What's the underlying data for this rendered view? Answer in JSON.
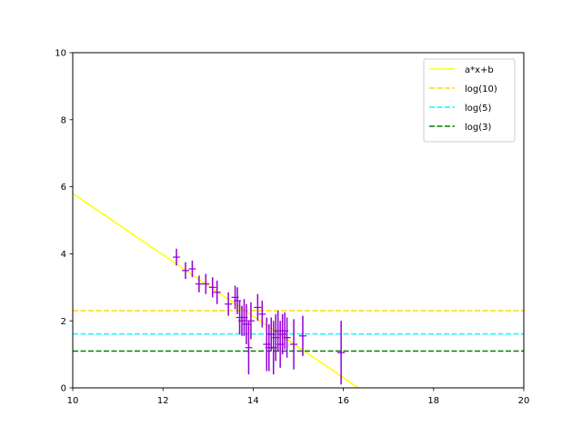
{
  "chart_data": {
    "type": "scatter",
    "title": "",
    "xlabel": "",
    "ylabel": "",
    "xlim": [
      10,
      20
    ],
    "ylim": [
      0,
      10
    ],
    "xticks": [
      "10",
      "12",
      "14",
      "16",
      "18",
      "20"
    ],
    "yticks": [
      "0",
      "2",
      "4",
      "6",
      "8",
      "10"
    ],
    "grid": false,
    "legend_position": "top-right",
    "points": {
      "color": "#9400d3",
      "marker": "+",
      "data": [
        {
          "x": 12.3,
          "y": 3.9,
          "err": 0.25
        },
        {
          "x": 12.5,
          "y": 3.5,
          "err": 0.25
        },
        {
          "x": 12.65,
          "y": 3.55,
          "err": 0.25
        },
        {
          "x": 12.8,
          "y": 3.1,
          "err": 0.25
        },
        {
          "x": 12.95,
          "y": 3.1,
          "err": 0.3
        },
        {
          "x": 13.1,
          "y": 3.0,
          "err": 0.3
        },
        {
          "x": 13.2,
          "y": 2.85,
          "err": 0.35
        },
        {
          "x": 13.45,
          "y": 2.5,
          "err": 0.35
        },
        {
          "x": 13.6,
          "y": 2.7,
          "err": 0.35
        },
        {
          "x": 13.65,
          "y": 2.6,
          "err": 0.4
        },
        {
          "x": 13.7,
          "y": 2.1,
          "err": 0.5
        },
        {
          "x": 13.75,
          "y": 2.0,
          "err": 0.45
        },
        {
          "x": 13.8,
          "y": 2.1,
          "err": 0.55
        },
        {
          "x": 13.85,
          "y": 1.9,
          "err": 0.6
        },
        {
          "x": 13.9,
          "y": 1.2,
          "err": 0.8
        },
        {
          "x": 13.95,
          "y": 2.0,
          "err": 0.55
        },
        {
          "x": 14.1,
          "y": 2.4,
          "err": 0.4
        },
        {
          "x": 14.2,
          "y": 2.2,
          "err": 0.4
        },
        {
          "x": 14.3,
          "y": 1.3,
          "err": 0.8
        },
        {
          "x": 14.35,
          "y": 1.2,
          "err": 0.7
        },
        {
          "x": 14.4,
          "y": 1.6,
          "err": 0.5
        },
        {
          "x": 14.45,
          "y": 1.2,
          "err": 0.8
        },
        {
          "x": 14.5,
          "y": 1.5,
          "err": 0.7
        },
        {
          "x": 14.55,
          "y": 1.7,
          "err": 0.6
        },
        {
          "x": 14.6,
          "y": 1.3,
          "err": 0.7
        },
        {
          "x": 14.65,
          "y": 1.6,
          "err": 0.6
        },
        {
          "x": 14.7,
          "y": 1.7,
          "err": 0.55
        },
        {
          "x": 14.75,
          "y": 1.5,
          "err": 0.6
        },
        {
          "x": 14.9,
          "y": 1.3,
          "err": 0.75
        },
        {
          "x": 15.1,
          "y": 1.55,
          "err": 0.6
        },
        {
          "x": 15.95,
          "y": 1.05,
          "err": 0.95
        }
      ]
    },
    "series": [
      {
        "name": "a*x+b",
        "kind": "line",
        "color": "#ffff00",
        "style": "solid",
        "x": [
          10,
          16.33
        ],
        "y": [
          5.8,
          0
        ]
      },
      {
        "name": "log(10)",
        "kind": "hline",
        "color": "#ffd700",
        "style": "dashed",
        "y": 2.303
      },
      {
        "name": "log(5)",
        "kind": "hline",
        "color": "#00ffff",
        "style": "dashed",
        "y": 1.609
      },
      {
        "name": "log(3)",
        "kind": "hline",
        "color": "#008000",
        "style": "dashed",
        "y": 1.099
      }
    ]
  }
}
